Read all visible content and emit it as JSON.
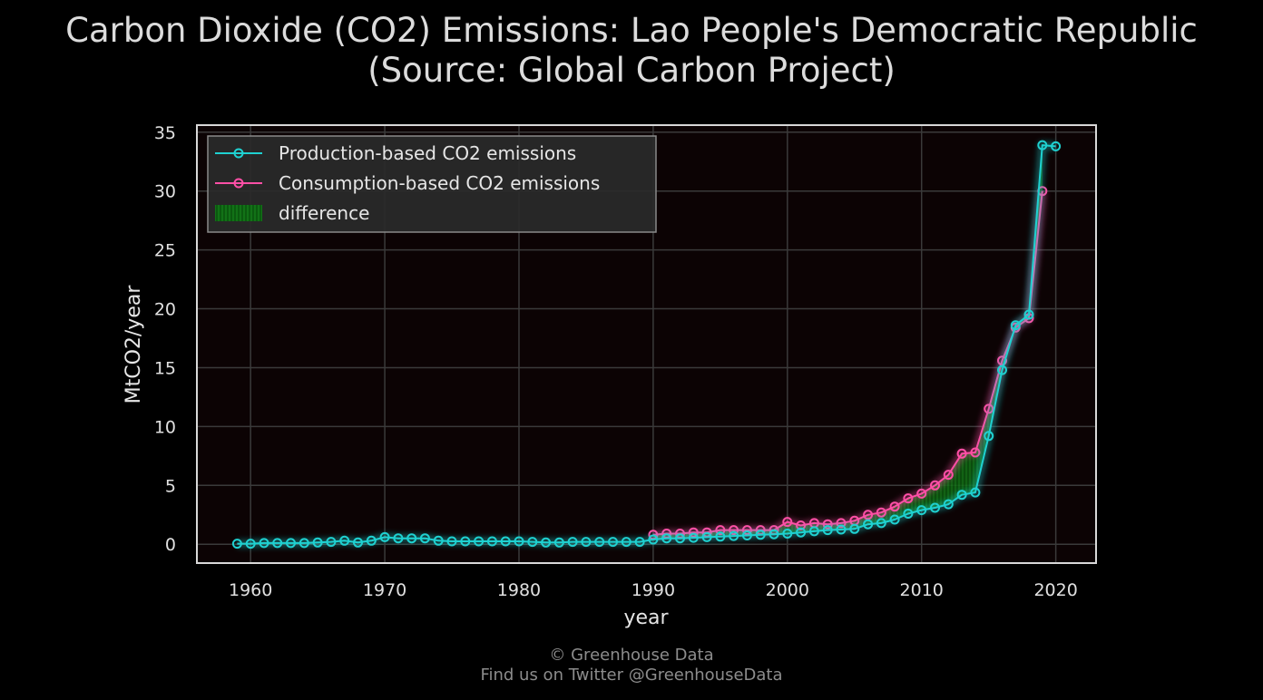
{
  "title_line1": "Carbon Dioxide (CO2) Emissions: Lao People's Democratic Republic",
  "title_line2": "(Source: Global Carbon Project)",
  "footer_line1": "© Greenhouse Data",
  "footer_line2": "Find us on Twitter @GreenhouseData",
  "colors": {
    "production": "#1fd1d1",
    "consumption": "#ff4fa6",
    "difference": "#0b6b10",
    "plot_bg": "#0c0304",
    "grid": "#3a3a3a",
    "frame": "#d8d8d8"
  },
  "chart_data": {
    "type": "line",
    "title": "Carbon Dioxide (CO2) Emissions: Lao People's Democratic Republic (Source: Global Carbon Project)",
    "xlabel": "year",
    "ylabel": "MtCO2/year",
    "xlim": [
      1956,
      2023
    ],
    "ylim": [
      -1.6,
      35.6
    ],
    "xticks": [
      "1960",
      "1970",
      "1980",
      "1990",
      "2000",
      "2010",
      "2020"
    ],
    "yticks": [
      "0",
      "5",
      "10",
      "15",
      "20",
      "25",
      "30",
      "35"
    ],
    "grid": true,
    "legend_position": "top-left",
    "legend": [
      "Production-based CO2 emissions",
      "Consumption-based CO2 emissions",
      "difference"
    ],
    "series": [
      {
        "name": "Production-based CO2 emissions",
        "x": [
          1959,
          1960,
          1961,
          1962,
          1963,
          1964,
          1965,
          1966,
          1967,
          1968,
          1969,
          1970,
          1971,
          1972,
          1973,
          1974,
          1975,
          1976,
          1977,
          1978,
          1979,
          1980,
          1981,
          1982,
          1983,
          1984,
          1985,
          1986,
          1987,
          1988,
          1989,
          1990,
          1991,
          1992,
          1993,
          1994,
          1995,
          1996,
          1997,
          1998,
          1999,
          2000,
          2001,
          2002,
          2003,
          2004,
          2005,
          2006,
          2007,
          2008,
          2009,
          2010,
          2011,
          2012,
          2013,
          2014,
          2015,
          2016,
          2017,
          2018,
          2019,
          2020
        ],
        "y": [
          0.05,
          0.05,
          0.1,
          0.1,
          0.1,
          0.1,
          0.15,
          0.2,
          0.3,
          0.15,
          0.3,
          0.6,
          0.5,
          0.5,
          0.5,
          0.3,
          0.25,
          0.25,
          0.25,
          0.25,
          0.25,
          0.25,
          0.2,
          0.15,
          0.15,
          0.2,
          0.2,
          0.2,
          0.2,
          0.2,
          0.2,
          0.4,
          0.5,
          0.5,
          0.55,
          0.6,
          0.65,
          0.7,
          0.75,
          0.8,
          0.85,
          0.9,
          1.0,
          1.1,
          1.2,
          1.25,
          1.3,
          1.7,
          1.8,
          2.1,
          2.6,
          2.9,
          3.1,
          3.4,
          4.2,
          4.4,
          9.2,
          14.8,
          18.6,
          19.5,
          33.9,
          33.8
        ]
      },
      {
        "name": "Consumption-based CO2 emissions",
        "x": [
          1990,
          1991,
          1992,
          1993,
          1994,
          1995,
          1996,
          1997,
          1998,
          1999,
          2000,
          2001,
          2002,
          2003,
          2004,
          2005,
          2006,
          2007,
          2008,
          2009,
          2010,
          2011,
          2012,
          2013,
          2014,
          2015,
          2016,
          2017,
          2018,
          2019
        ],
        "y": [
          0.8,
          0.9,
          0.9,
          1.0,
          1.0,
          1.2,
          1.2,
          1.2,
          1.2,
          1.2,
          1.9,
          1.6,
          1.8,
          1.7,
          1.8,
          2.0,
          2.5,
          2.7,
          3.2,
          3.9,
          4.3,
          5.0,
          5.9,
          7.7,
          7.8,
          11.5,
          15.6,
          18.4,
          19.2,
          30.0
        ]
      }
    ]
  }
}
